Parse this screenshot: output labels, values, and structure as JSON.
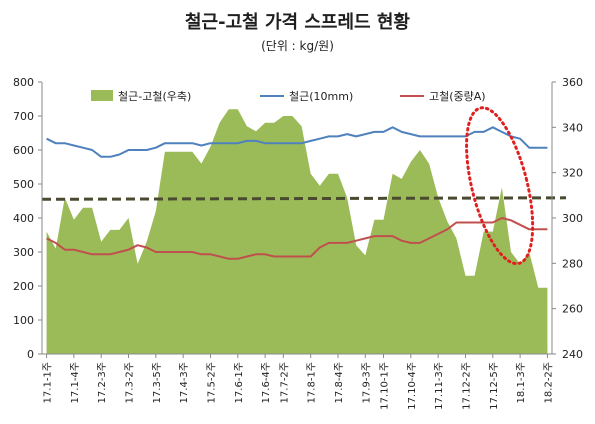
{
  "chart_data": {
    "type": "area",
    "title": "철근-고철 가격 스프레드 현황",
    "subtitle": "(단위 : kg/원)",
    "categories": [
      "17.1-1주",
      "17.1-2주",
      "17.1-3주",
      "17.1-4주",
      "17.2-1주",
      "17.2-2주",
      "17.2-3주",
      "17.2-4주",
      "17.3-1주",
      "17.3-2주",
      "17.3-3주",
      "17.3-4주",
      "17.3-5주",
      "17.4-1주",
      "17.4-2주",
      "17.4-3주",
      "17.4-4주",
      "17.5-1주",
      "17.5-2주",
      "17.5-3주",
      "17.5-4주",
      "17.6-1주",
      "17.6-2주",
      "17.6-3주",
      "17.6-4주",
      "17.7-1주",
      "17.7-2주",
      "17.7-3주",
      "17.7-4주",
      "17.8-1주",
      "17.8-2주",
      "17.8-3주",
      "17.8-4주",
      "17.9-1주",
      "17.9-2주",
      "17.9-3주",
      "17.9-4주",
      "17.10-1주",
      "17.10-2주",
      "17.10-3주",
      "17.10-4주",
      "17.11-1주",
      "17.11-2주",
      "17.11-3주",
      "17.11-4주",
      "17.12-1주",
      "17.12-2주",
      "17.12-3주",
      "17.12-4주",
      "17.12-5주",
      "18.1-1주",
      "18.1-2주",
      "18.1-3주",
      "18.1-4주",
      "18.2-1주",
      "18.2-2주"
    ],
    "x_tick_labels": [
      "17.1-1주",
      "17.1-4주",
      "17.2-3주",
      "17.3-2주",
      "17.3-5주",
      "17.4-3주",
      "17.5-2주",
      "17.6-1주",
      "17.6-4주",
      "17.7-2주",
      "17.8-1주",
      "17.8-4주",
      "17.9-3주",
      "17.10-1주",
      "17.10-4주",
      "17.11-3주",
      "17.12-2주",
      "17.12-5주",
      "18.1-3주",
      "18.2-2주"
    ],
    "series": [
      {
        "name": "철근-고철(우축)",
        "type": "area",
        "axis": "left",
        "color": "#9bbb59",
        "values": [
          360,
          310,
          460,
          395,
          430,
          430,
          330,
          365,
          365,
          400,
          265,
          330,
          420,
          595,
          595,
          595,
          595,
          560,
          610,
          680,
          720,
          720,
          670,
          655,
          680,
          680,
          700,
          700,
          670,
          530,
          495,
          530,
          530,
          460,
          320,
          290,
          395,
          395,
          530,
          515,
          565,
          600,
          560,
          460,
          390,
          340,
          230,
          230,
          360,
          360,
          490,
          300,
          265,
          300,
          195,
          195
        ]
      },
      {
        "name": "철근(10mm)",
        "type": "line",
        "axis": "right",
        "color": "#4f81bd",
        "values": [
          335,
          333,
          333,
          332,
          331,
          330,
          327,
          327,
          328,
          330,
          330,
          330,
          331,
          333,
          333,
          333,
          333,
          332,
          333,
          333,
          333,
          333,
          334,
          334,
          333,
          333,
          333,
          333,
          333,
          334,
          335,
          336,
          336,
          337,
          336,
          337,
          338,
          338,
          340,
          338,
          337,
          336,
          336,
          336,
          336,
          336,
          336,
          338,
          338,
          340,
          338,
          336,
          335,
          331,
          331,
          331
        ]
      },
      {
        "name": "고철(중량A)",
        "type": "line",
        "axis": "right",
        "color": "#c0504d",
        "values": [
          291,
          289,
          286,
          286,
          285,
          284,
          284,
          284,
          285,
          286,
          288,
          287,
          285,
          285,
          285,
          285,
          285,
          284,
          284,
          283,
          282,
          282,
          283,
          284,
          284,
          283,
          283,
          283,
          283,
          283,
          287,
          289,
          289,
          289,
          290,
          291,
          292,
          292,
          292,
          290,
          289,
          289,
          291,
          293,
          295,
          298,
          298,
          298,
          298,
          298,
          300,
          299,
          297,
          295,
          295,
          295
        ]
      }
    ],
    "reference_line": {
      "value": 455,
      "axis": "left",
      "style": "dashed",
      "color": "#4a4a30"
    },
    "annotation": {
      "type": "ellipse",
      "style": "dotted",
      "color": "#e02020"
    },
    "y_left": {
      "ticks": [
        "0",
        "100",
        "200",
        "300",
        "400",
        "500",
        "600",
        "700",
        "800"
      ],
      "ylim": [
        0,
        800
      ]
    },
    "y_right": {
      "ticks": [
        "240",
        "260",
        "280",
        "300",
        "320",
        "340",
        "360"
      ],
      "ylim": [
        240,
        360
      ]
    },
    "grid": false,
    "legend_position": "top"
  }
}
